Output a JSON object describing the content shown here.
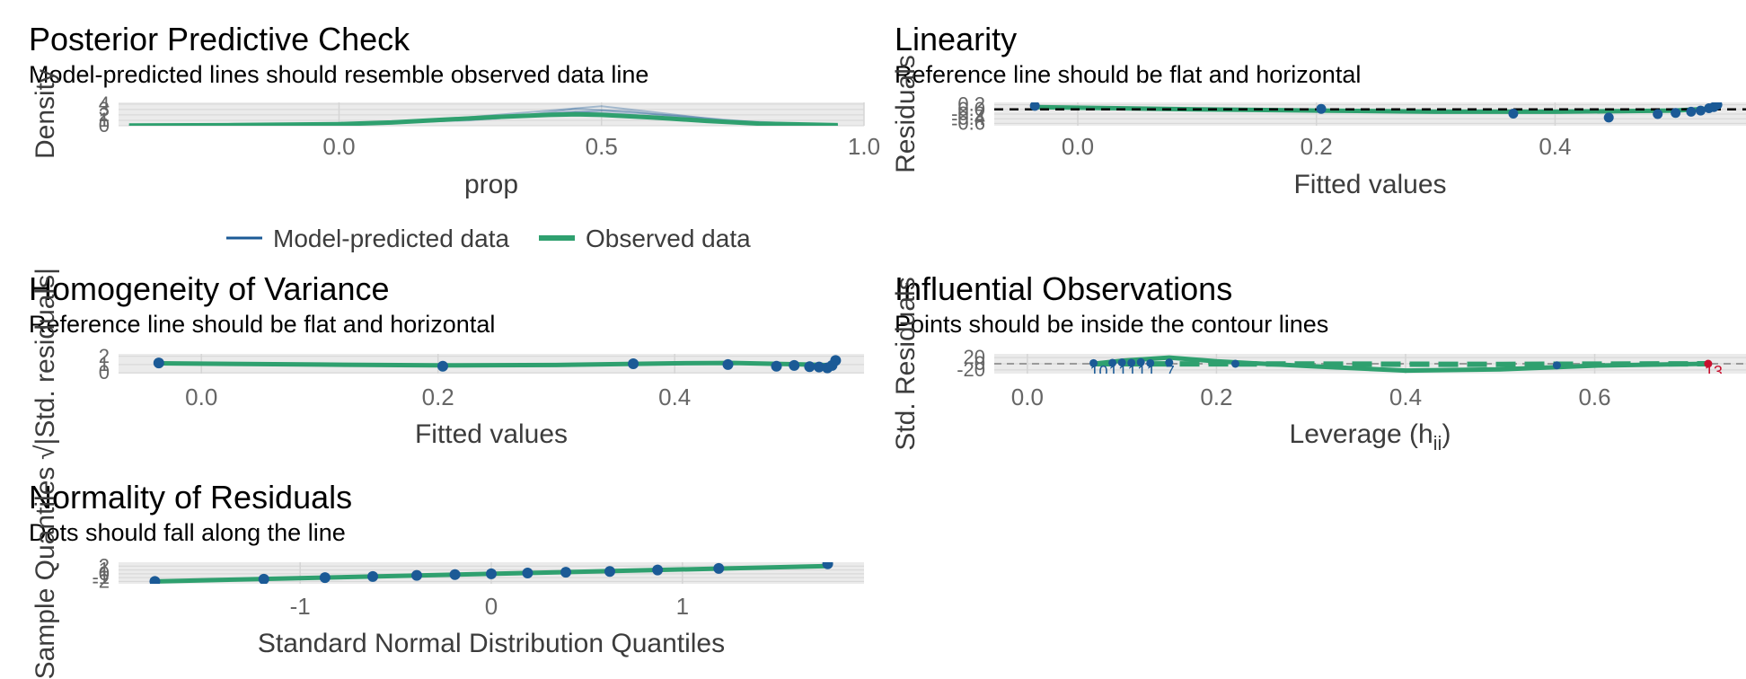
{
  "colors": {
    "panel": "#ebebeb",
    "grid_major": "#d5d5d5",
    "grid_minor": "#f3f3f3",
    "model": "#1b5a96",
    "observed": "#2fa06f",
    "points": "#1b5a96",
    "reference": "#000000",
    "contour": "#9a9a9a",
    "flag": "#c8102e"
  },
  "chart_data": [
    {
      "id": "ppc",
      "type": "line",
      "title": "Posterior Predictive Check",
      "subtitle": "Model-predicted lines should resemble observed data line",
      "xlabel": "prop",
      "ylabel": "Density",
      "xlim": [
        -0.42,
        1.0
      ],
      "ylim": [
        0,
        4.3
      ],
      "xticks": [
        0.0,
        0.5,
        1.0
      ],
      "xtick_labels": [
        "0.0",
        "0.5",
        "1.0"
      ],
      "yticks": [
        0,
        1,
        2,
        3,
        4
      ],
      "ytick_labels": [
        "0",
        "1",
        "2",
        "3",
        "4"
      ],
      "legend": [
        "Model-predicted data",
        "Observed data"
      ],
      "observed": {
        "x": [
          -0.4,
          -0.2,
          0.0,
          0.1,
          0.2,
          0.3,
          0.4,
          0.45,
          0.5,
          0.6,
          0.7,
          0.8,
          0.95
        ],
        "y": [
          0.05,
          0.12,
          0.3,
          0.6,
          1.1,
          1.6,
          2.0,
          2.1,
          2.0,
          1.5,
          0.9,
          0.4,
          0.1
        ]
      },
      "model_draws": [
        {
          "x": [
            -0.4,
            0.0,
            0.2,
            0.35,
            0.45,
            0.55,
            0.7,
            0.95
          ],
          "y": [
            0.04,
            0.2,
            0.9,
            1.9,
            2.6,
            2.1,
            0.9,
            0.1
          ]
        },
        {
          "x": [
            -0.4,
            0.0,
            0.2,
            0.35,
            0.5,
            0.6,
            0.75,
            0.95
          ],
          "y": [
            0.03,
            0.25,
            1.2,
            2.4,
            3.6,
            2.5,
            0.8,
            0.1
          ]
        },
        {
          "x": [
            -0.4,
            0.0,
            0.25,
            0.4,
            0.5,
            0.65,
            0.8,
            0.95
          ],
          "y": [
            0.05,
            0.3,
            1.0,
            2.2,
            2.8,
            1.8,
            0.6,
            0.1
          ]
        },
        {
          "x": [
            -0.4,
            0.05,
            0.3,
            0.45,
            0.55,
            0.7,
            0.95
          ],
          "y": [
            0.04,
            0.4,
            1.3,
            3.1,
            2.7,
            1.1,
            0.1
          ]
        }
      ]
    },
    {
      "id": "linearity",
      "type": "scatter",
      "title": "Linearity",
      "subtitle": "Reference line should be flat and horizontal",
      "xlabel": "Fitted values",
      "ylabel": "Residuals",
      "xlim": [
        -0.07,
        0.56
      ],
      "ylim": [
        -0.7,
        0.3
      ],
      "xticks": [
        0.0,
        0.2,
        0.4
      ],
      "xtick_labels": [
        "0.0",
        "0.2",
        "0.4"
      ],
      "yticks": [
        -0.6,
        -0.4,
        -0.2,
        0.0,
        0.2
      ],
      "ytick_labels": [
        "-0.6",
        "-0.4",
        "-0.2",
        "0.0",
        "0.2"
      ],
      "reference_y": 0,
      "points": {
        "x": [
          -0.036,
          0.204,
          0.365,
          0.445,
          0.486,
          0.501,
          0.514,
          0.522,
          0.529,
          0.533,
          0.536
        ],
        "y": [
          0.15,
          0.02,
          -0.18,
          -0.35,
          -0.2,
          -0.15,
          -0.1,
          -0.05,
          0.05,
          0.1,
          0.2
        ]
      },
      "smooth": {
        "x": [
          -0.036,
          0.1,
          0.2,
          0.3,
          0.4,
          0.5,
          0.536
        ],
        "y": [
          0.1,
          0.0,
          -0.05,
          -0.1,
          -0.1,
          -0.05,
          0.05
        ]
      }
    },
    {
      "id": "homogeneity",
      "type": "scatter",
      "title": "Homogeneity of Variance",
      "subtitle": "Reference line should be flat and horizontal",
      "xlabel": "Fitted values",
      "ylabel": "√|Std. residuals|",
      "xlim": [
        -0.07,
        0.56
      ],
      "ylim": [
        -0.1,
        2.3
      ],
      "xticks": [
        0.0,
        0.2,
        0.4
      ],
      "xtick_labels": [
        "0.0",
        "0.2",
        "0.4"
      ],
      "yticks": [
        0,
        1,
        2
      ],
      "ytick_labels": [
        "0",
        "1",
        "2"
      ],
      "points": {
        "x": [
          -0.036,
          0.204,
          0.365,
          0.445,
          0.486,
          0.501,
          0.514,
          0.522,
          0.529,
          0.533,
          0.536
        ],
        "y": [
          1.2,
          0.8,
          1.1,
          1.0,
          0.8,
          0.9,
          0.75,
          0.7,
          0.6,
          0.9,
          1.5
        ]
      },
      "smooth": {
        "x": [
          -0.036,
          0.1,
          0.2,
          0.3,
          0.4,
          0.45,
          0.5,
          0.536
        ],
        "y": [
          1.15,
          1.0,
          0.9,
          0.95,
          1.15,
          1.2,
          1.05,
          0.9
        ]
      }
    },
    {
      "id": "influential",
      "type": "scatter",
      "title": "Influential Observations",
      "subtitle": "Points should be inside the contour lines",
      "xlabel": "Leverage (h",
      "xlabel_sub": "ii",
      "xlabel_close": ")",
      "ylabel": "Std. Residuals",
      "xlim": [
        -0.035,
        0.76
      ],
      "ylim": [
        -32,
        32
      ],
      "xticks": [
        0.0,
        0.2,
        0.4,
        0.6
      ],
      "xtick_labels": [
        "0.0",
        "0.2",
        "0.4",
        "0.6"
      ],
      "yticks": [
        -20,
        0,
        20
      ],
      "ytick_labels": [
        "-20",
        "0",
        "20"
      ],
      "points": {
        "x": [
          0.07,
          0.09,
          0.1,
          0.11,
          0.12,
          0.13,
          0.15,
          0.22,
          0.56,
          0.72
        ],
        "y": [
          2,
          3,
          4,
          3,
          5,
          2,
          4,
          0,
          -5,
          0
        ]
      },
      "point_labels": [
        "10",
        "1",
        "1",
        "1",
        "1",
        "1",
        "7",
        "",
        "",
        "13"
      ],
      "smooth": {
        "x": [
          0.07,
          0.1,
          0.15,
          0.2,
          0.3,
          0.4,
          0.5,
          0.6,
          0.72
        ],
        "y": [
          0,
          10,
          20,
          8,
          -8,
          -22,
          -18,
          -6,
          0
        ]
      },
      "trend": {
        "x": [
          0.07,
          0.3,
          0.5,
          0.72
        ],
        "y": [
          0,
          -1,
          -2,
          0
        ]
      }
    },
    {
      "id": "normality",
      "type": "scatter",
      "title": "Normality of Residuals",
      "subtitle": "Dots should fall along the line",
      "xlabel": "Standard Normal Distribution Quantiles",
      "ylabel": "Sample Quantiles",
      "xlim": [
        -1.95,
        1.95
      ],
      "ylim": [
        -2.6,
        3.0
      ],
      "xticks": [
        -1,
        0,
        1
      ],
      "xtick_labels": [
        "-1",
        "0",
        "1"
      ],
      "yticks": [
        -2,
        -1,
        0,
        1,
        2
      ],
      "ytick_labels": [
        "-2",
        "-1",
        "0",
        "1",
        "2"
      ],
      "points": {
        "x": [
          -1.76,
          -1.19,
          -0.87,
          -0.62,
          -0.39,
          -0.19,
          0.0,
          0.19,
          0.39,
          0.62,
          0.87,
          1.19,
          1.76
        ],
        "y": [
          -2.0,
          -1.4,
          -1.0,
          -0.7,
          -0.4,
          -0.2,
          0.0,
          0.2,
          0.4,
          0.6,
          1.0,
          1.4,
          2.6
        ]
      },
      "line": {
        "x": [
          -1.76,
          1.76
        ],
        "y": [
          -2.0,
          2.0
        ]
      }
    }
  ]
}
